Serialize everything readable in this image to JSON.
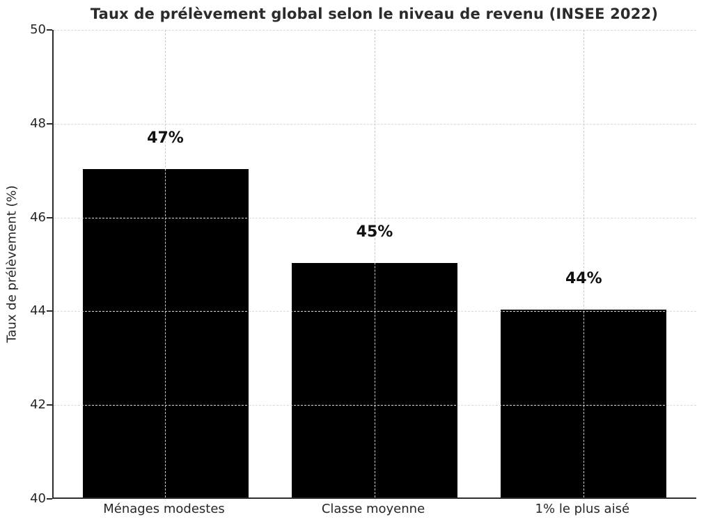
{
  "chart_data": {
    "type": "bar",
    "title": "Taux de prélèvement global selon le niveau de revenu (INSEE 2022)",
    "ylabel": "Taux de prélèvement (%)",
    "xlabel": "",
    "categories": [
      "Ménages modestes",
      "Classe moyenne",
      "1% le plus aisé"
    ],
    "values": [
      47,
      45,
      44
    ],
    "value_labels": [
      "47%",
      "45%",
      "44%"
    ],
    "ylim": [
      40,
      50
    ],
    "yticks": [
      40,
      42,
      44,
      46,
      48,
      50
    ],
    "grid": "dashed-both",
    "legend": "none",
    "bar_color": "#000000",
    "grid_color": "#d9d9d9",
    "axis_color": "#2e2e2e",
    "text_color": "#262626"
  }
}
